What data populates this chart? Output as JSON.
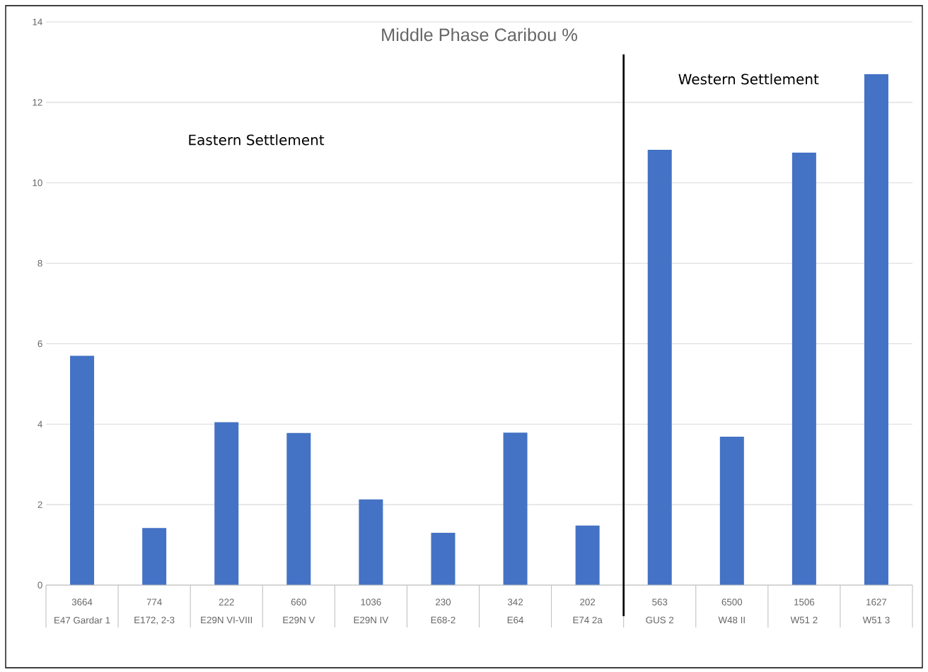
{
  "chart_data": {
    "type": "bar",
    "title": "Middle Phase Caribou %",
    "categories": [
      "E47 Gardar 1",
      "E172, 2-3",
      "E29N VI-VIII",
      "E29N V",
      "E29N IV",
      "E68-2",
      "E64",
      "E74 2a",
      "GUS 2",
      "W48 II",
      "W51 2",
      "W51 3"
    ],
    "values": [
      5.7,
      1.42,
      4.05,
      3.78,
      2.13,
      1.3,
      3.79,
      1.48,
      10.82,
      3.69,
      10.75,
      12.7
    ],
    "color": "#4472c4",
    "ylim": [
      0,
      14
    ],
    "yticks": [
      0,
      2,
      4,
      6,
      8,
      10,
      12,
      14
    ],
    "grid": "y",
    "ref_lines": [
      {
        "axis": "x",
        "value": "GUS 2",
        "color": "#000000"
      }
    ],
    "annotations": [
      "Eastern Settlement",
      "Western Settlement",
      "3664",
      "774",
      "222",
      "660",
      "1036",
      "230",
      "342",
      "202",
      "563",
      "6500",
      "1506",
      "1627"
    ]
  }
}
